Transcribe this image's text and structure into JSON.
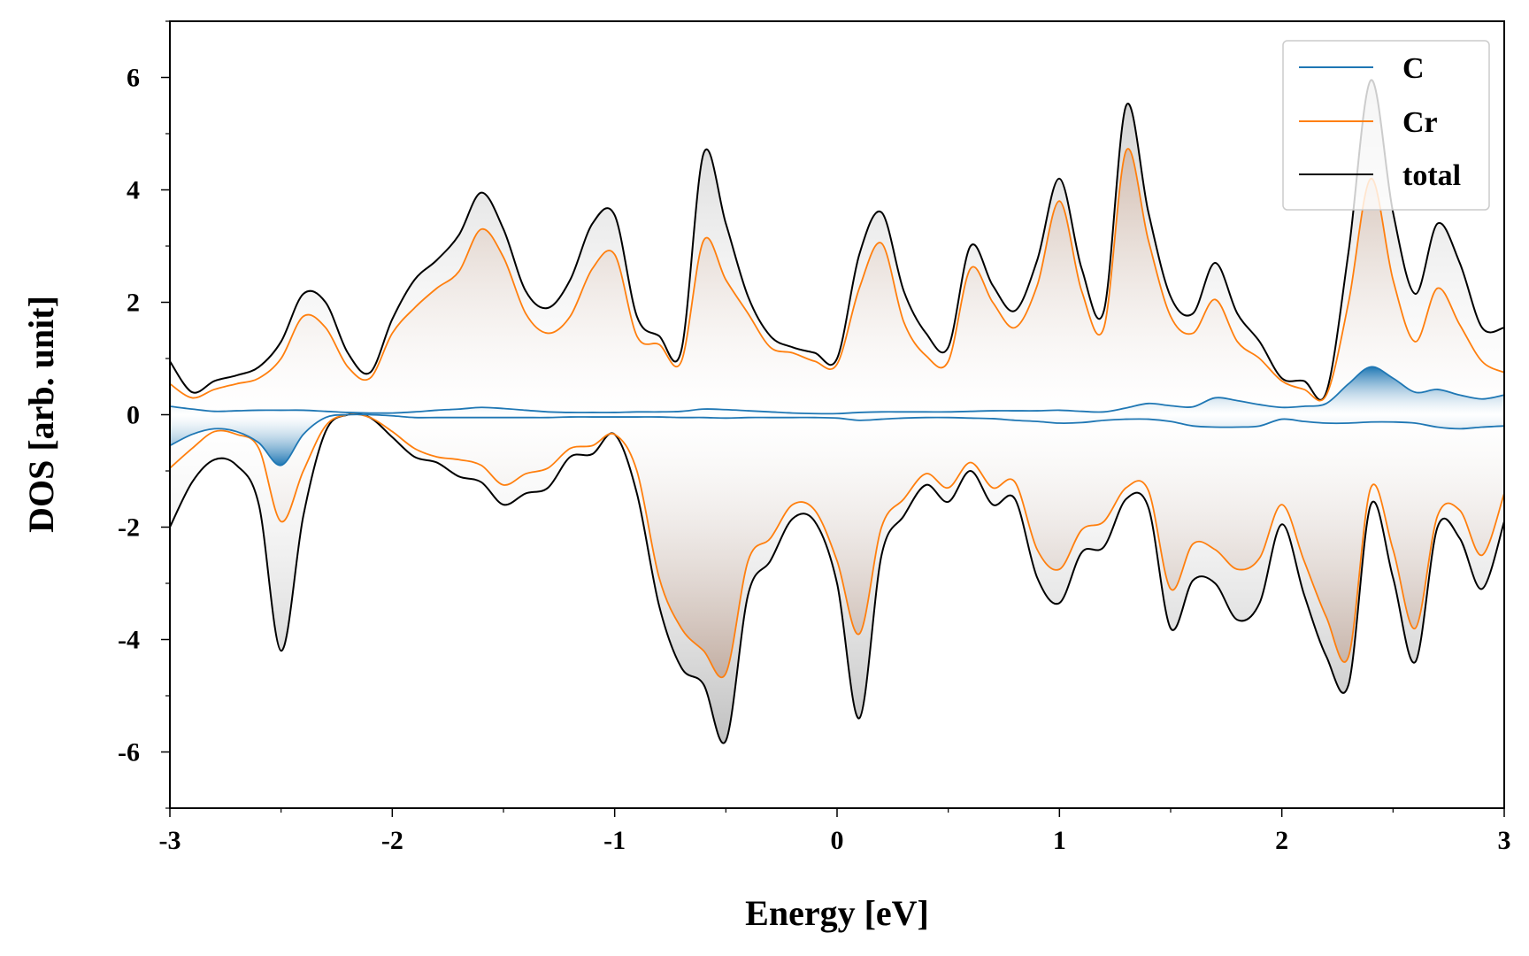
{
  "chart_data": {
    "type": "line",
    "xlabel": "Energy [eV]",
    "ylabel": "DOS [arb. unit]",
    "xlim": [
      -3,
      3
    ],
    "ylim": [
      -7,
      7
    ],
    "x_ticks": [
      -3,
      -2,
      -1,
      0,
      1,
      2,
      3
    ],
    "x_tick_labels": [
      "-3",
      "-2",
      "-1",
      "0",
      "1",
      "2",
      "3"
    ],
    "y_ticks": [
      -6,
      -4,
      -2,
      0,
      2,
      4,
      6
    ],
    "y_tick_labels": [
      "-6",
      "-4",
      "-2",
      "0",
      "2",
      "4",
      "6"
    ],
    "grid": false,
    "legend_position": "top-right",
    "colors": {
      "C": "#1f77b4",
      "Cr": "#ff7f0e",
      "total": "#000000"
    },
    "x": [
      -3.0,
      -2.9,
      -2.8,
      -2.7,
      -2.6,
      -2.5,
      -2.4,
      -2.3,
      -2.2,
      -2.1,
      -2.0,
      -1.9,
      -1.8,
      -1.7,
      -1.6,
      -1.5,
      -1.4,
      -1.3,
      -1.2,
      -1.1,
      -1.0,
      -0.9,
      -0.8,
      -0.7,
      -0.6,
      -0.5,
      -0.4,
      -0.3,
      -0.2,
      -0.1,
      0.0,
      0.1,
      0.2,
      0.3,
      0.4,
      0.5,
      0.6,
      0.7,
      0.8,
      0.9,
      1.0,
      1.1,
      1.2,
      1.3,
      1.4,
      1.5,
      1.6,
      1.7,
      1.8,
      1.9,
      2.0,
      2.1,
      2.2,
      2.3,
      2.4,
      2.5,
      2.6,
      2.7,
      2.8,
      2.9,
      3.0
    ],
    "series": [
      {
        "name": "C",
        "spin": "up",
        "values": [
          0.15,
          0.1,
          0.06,
          0.07,
          0.08,
          0.08,
          0.08,
          0.06,
          0.04,
          0.03,
          0.03,
          0.05,
          0.08,
          0.1,
          0.13,
          0.11,
          0.08,
          0.05,
          0.04,
          0.04,
          0.04,
          0.05,
          0.05,
          0.06,
          0.1,
          0.09,
          0.07,
          0.05,
          0.03,
          0.02,
          0.02,
          0.04,
          0.05,
          0.05,
          0.05,
          0.05,
          0.06,
          0.07,
          0.07,
          0.07,
          0.08,
          0.06,
          0.05,
          0.12,
          0.2,
          0.16,
          0.14,
          0.3,
          0.25,
          0.18,
          0.13,
          0.15,
          0.2,
          0.55,
          0.85,
          0.65,
          0.4,
          0.45,
          0.35,
          0.28,
          0.35
        ]
      },
      {
        "name": "C",
        "spin": "down",
        "values": [
          -0.55,
          -0.35,
          -0.25,
          -0.3,
          -0.5,
          -0.9,
          -0.35,
          -0.05,
          0.0,
          0.0,
          -0.02,
          -0.05,
          -0.05,
          -0.05,
          -0.05,
          -0.05,
          -0.05,
          -0.05,
          -0.04,
          -0.04,
          -0.04,
          -0.04,
          -0.04,
          -0.05,
          -0.05,
          -0.06,
          -0.05,
          -0.05,
          -0.05,
          -0.05,
          -0.06,
          -0.1,
          -0.08,
          -0.06,
          -0.05,
          -0.05,
          -0.06,
          -0.07,
          -0.1,
          -0.12,
          -0.15,
          -0.14,
          -0.1,
          -0.08,
          -0.08,
          -0.12,
          -0.2,
          -0.22,
          -0.22,
          -0.2,
          -0.08,
          -0.12,
          -0.15,
          -0.15,
          -0.13,
          -0.13,
          -0.15,
          -0.22,
          -0.25,
          -0.22,
          -0.2
        ]
      },
      {
        "name": "Cr",
        "spin": "up",
        "values": [
          0.55,
          0.3,
          0.45,
          0.55,
          0.65,
          1.0,
          1.75,
          1.55,
          0.85,
          0.65,
          1.45,
          1.9,
          2.25,
          2.55,
          3.3,
          2.8,
          1.8,
          1.45,
          1.75,
          2.6,
          2.85,
          1.4,
          1.25,
          0.95,
          3.1,
          2.4,
          1.8,
          1.2,
          1.1,
          0.95,
          0.9,
          2.25,
          3.05,
          1.65,
          1.05,
          0.95,
          2.6,
          2.0,
          1.55,
          2.3,
          3.8,
          2.2,
          1.55,
          4.7,
          3.1,
          1.75,
          1.45,
          2.05,
          1.3,
          1.0,
          0.6,
          0.45,
          0.35,
          2.0,
          4.2,
          2.4,
          1.3,
          2.25,
          1.6,
          0.95,
          0.75
        ]
      },
      {
        "name": "Cr",
        "spin": "down",
        "values": [
          -0.95,
          -0.6,
          -0.3,
          -0.35,
          -0.6,
          -1.9,
          -1.0,
          -0.2,
          0.0,
          -0.05,
          -0.3,
          -0.6,
          -0.75,
          -0.8,
          -0.9,
          -1.25,
          -1.05,
          -0.95,
          -0.6,
          -0.55,
          -0.35,
          -1.0,
          -2.9,
          -3.8,
          -4.2,
          -4.6,
          -2.6,
          -2.2,
          -1.6,
          -1.7,
          -2.6,
          -3.9,
          -2.0,
          -1.5,
          -1.05,
          -1.3,
          -0.85,
          -1.3,
          -1.2,
          -2.4,
          -2.75,
          -2.05,
          -1.9,
          -1.3,
          -1.35,
          -3.1,
          -2.3,
          -2.4,
          -2.75,
          -2.55,
          -1.6,
          -2.6,
          -3.6,
          -4.3,
          -1.3,
          -2.4,
          -3.8,
          -1.8,
          -1.7,
          -2.5,
          -1.4
        ]
      },
      {
        "name": "total",
        "spin": "up",
        "values": [
          0.95,
          0.4,
          0.6,
          0.7,
          0.85,
          1.3,
          2.15,
          2.0,
          1.1,
          0.75,
          1.7,
          2.4,
          2.75,
          3.2,
          3.95,
          3.3,
          2.2,
          1.9,
          2.4,
          3.4,
          3.55,
          1.75,
          1.4,
          1.15,
          4.65,
          3.4,
          2.1,
          1.4,
          1.2,
          1.1,
          1.0,
          2.85,
          3.6,
          2.2,
          1.45,
          1.2,
          3.0,
          2.3,
          1.85,
          2.75,
          4.2,
          2.6,
          1.85,
          5.5,
          3.6,
          2.1,
          1.8,
          2.7,
          1.8,
          1.3,
          0.65,
          0.6,
          0.4,
          2.9,
          5.95,
          3.6,
          2.15,
          3.4,
          2.7,
          1.55,
          1.55
        ]
      },
      {
        "name": "total",
        "spin": "down",
        "values": [
          -2.0,
          -1.2,
          -0.8,
          -0.9,
          -1.6,
          -4.2,
          -1.8,
          -0.3,
          0.0,
          -0.05,
          -0.4,
          -0.75,
          -0.85,
          -1.1,
          -1.2,
          -1.6,
          -1.4,
          -1.3,
          -0.75,
          -0.7,
          -0.35,
          -1.4,
          -3.4,
          -4.5,
          -4.8,
          -5.8,
          -3.2,
          -2.6,
          -1.85,
          -1.9,
          -3.0,
          -5.4,
          -2.5,
          -1.8,
          -1.25,
          -1.55,
          -1.0,
          -1.6,
          -1.5,
          -2.9,
          -3.35,
          -2.45,
          -2.35,
          -1.5,
          -1.65,
          -3.8,
          -2.95,
          -3.0,
          -3.65,
          -3.35,
          -1.95,
          -3.2,
          -4.3,
          -4.8,
          -1.6,
          -2.9,
          -4.4,
          -2.0,
          -2.2,
          -3.1,
          -1.9
        ]
      }
    ],
    "legend": [
      "C",
      "Cr",
      "total"
    ]
  }
}
